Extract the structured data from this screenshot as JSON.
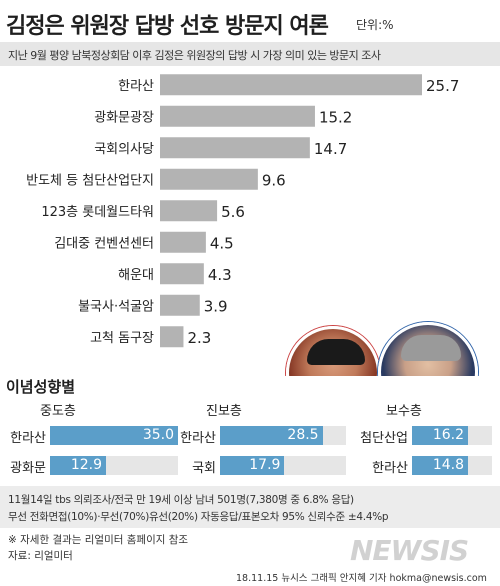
{
  "header": {
    "title": "김정은 위원장 답방 선호 방문지 여론",
    "unit": "단위:%",
    "subtitle": "지난 9월 평양 남북정상회담 이후 김정은 위원장의 답방 시 가장 의미 있는 방문지 조사"
  },
  "chart_data": {
    "type": "bar",
    "orientation": "horizontal",
    "categories": [
      "한라산",
      "광화문광장",
      "국회의사당",
      "반도체 등 첨단산업단지",
      "123층 롯데월드타워",
      "김대중 컨벤션센터",
      "해운대",
      "불국사·석굴암",
      "고척 돔구장"
    ],
    "values": [
      25.7,
      15.2,
      14.7,
      9.6,
      5.6,
      4.5,
      4.3,
      3.9,
      2.3
    ],
    "value_labels": [
      "25.7",
      "15.2",
      "14.7",
      "9.6",
      "5.6",
      "4.5",
      "4.3",
      "3.9",
      "2.3"
    ],
    "xlim": [
      0,
      25.7
    ],
    "bar_color": "#b3b3b3"
  },
  "ideology": {
    "title": "이념성향별",
    "groups": [
      {
        "name": "중도층",
        "items": [
          {
            "label": "한라산",
            "value": 35.0,
            "value_text": "35.0"
          },
          {
            "label": "광화문",
            "value": 12.9,
            "value_text": "12.9"
          }
        ]
      },
      {
        "name": "진보층",
        "items": [
          {
            "label": "한라산",
            "value": 28.5,
            "value_text": "28.5"
          },
          {
            "label": "국회",
            "value": 17.9,
            "value_text": "17.9"
          }
        ]
      },
      {
        "name": "보수층",
        "items": [
          {
            "label": "첨단산업",
            "value": 16.2,
            "value_text": "16.2"
          },
          {
            "label": "한라산",
            "value": 14.8,
            "value_text": "14.8"
          }
        ]
      }
    ],
    "bar_color": "#5b9ec9"
  },
  "notes": {
    "survey_line1": "11월14일 tbs 의뢰조사/전국 만 19세 이상 남녀 501명(7,380명 중 6.8% 응답)",
    "survey_line2": "무선 전화면접(10%)·무선(70%)유선(20%) 자동응답/표본오차 95% 신뢰수준 ±4.4%p",
    "reference": "※ 자세한 결과는 리얼미터 홈페이지 참조",
    "source": "자료: 리얼미터"
  },
  "footer": {
    "watermark": "NEWSIS",
    "credit": "18.11.15 뉴시스 그래픽 안지혜 기자 hokma@newsis.com"
  }
}
